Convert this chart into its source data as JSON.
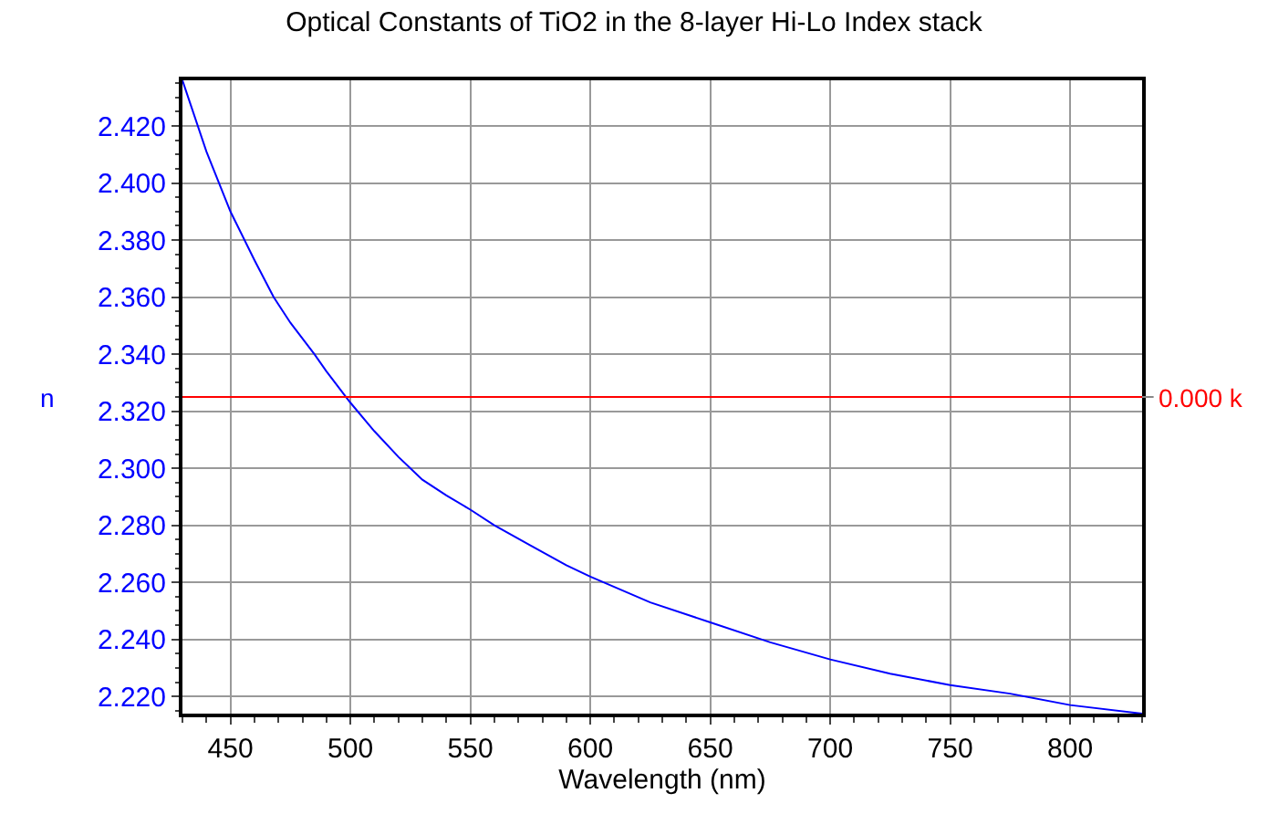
{
  "chart_data": {
    "type": "line",
    "title": "Optical Constants of TiO2 in the 8-layer Hi-Lo Index stack",
    "xlabel": "Wavelength (nm)",
    "ylabel": "n",
    "x": [
      430,
      440,
      450,
      460,
      468,
      475,
      485,
      490,
      500,
      510,
      520,
      530,
      540,
      550,
      560,
      575,
      590,
      600,
      625,
      650,
      675,
      700,
      725,
      750,
      775,
      800,
      830
    ],
    "series": [
      {
        "color": "#0000ff",
        "values": [
          2.436,
          2.411,
          2.39,
          2.373,
          2.36,
          2.351,
          2.34,
          2.334,
          2.323,
          2.313,
          2.304,
          2.296,
          2.2905,
          2.2855,
          2.28,
          2.273,
          2.266,
          2.262,
          2.253,
          2.246,
          2.239,
          2.233,
          2.228,
          2.224,
          2.221,
          2.217,
          2.214
        ]
      }
    ],
    "xlim": [
      430,
      830
    ],
    "xticks": [
      450,
      500,
      550,
      600,
      650,
      700,
      750,
      800
    ],
    "ylim": [
      2.214,
      2.436
    ],
    "yticks": [
      {
        "value": 2.22,
        "label": "2.220"
      },
      {
        "value": 2.24,
        "label": "2.240"
      },
      {
        "value": 2.26,
        "label": "2.260"
      },
      {
        "value": 2.28,
        "label": "2.280"
      },
      {
        "value": 2.3,
        "label": "2.300"
      },
      {
        "value": 2.32,
        "label": "2.320"
      },
      {
        "value": 2.34,
        "label": "2.340"
      },
      {
        "value": 2.36,
        "label": "2.360"
      },
      {
        "value": 2.38,
        "label": "2.380"
      },
      {
        "value": 2.4,
        "label": "2.400"
      },
      {
        "value": 2.42,
        "label": "2.420"
      }
    ],
    "ref_lines": [
      {
        "axis": "y",
        "value": 2.325,
        "label": "0.000 k",
        "color": "#ff0000"
      }
    ],
    "grid": true,
    "marker": "none",
    "line_style": "solid"
  }
}
